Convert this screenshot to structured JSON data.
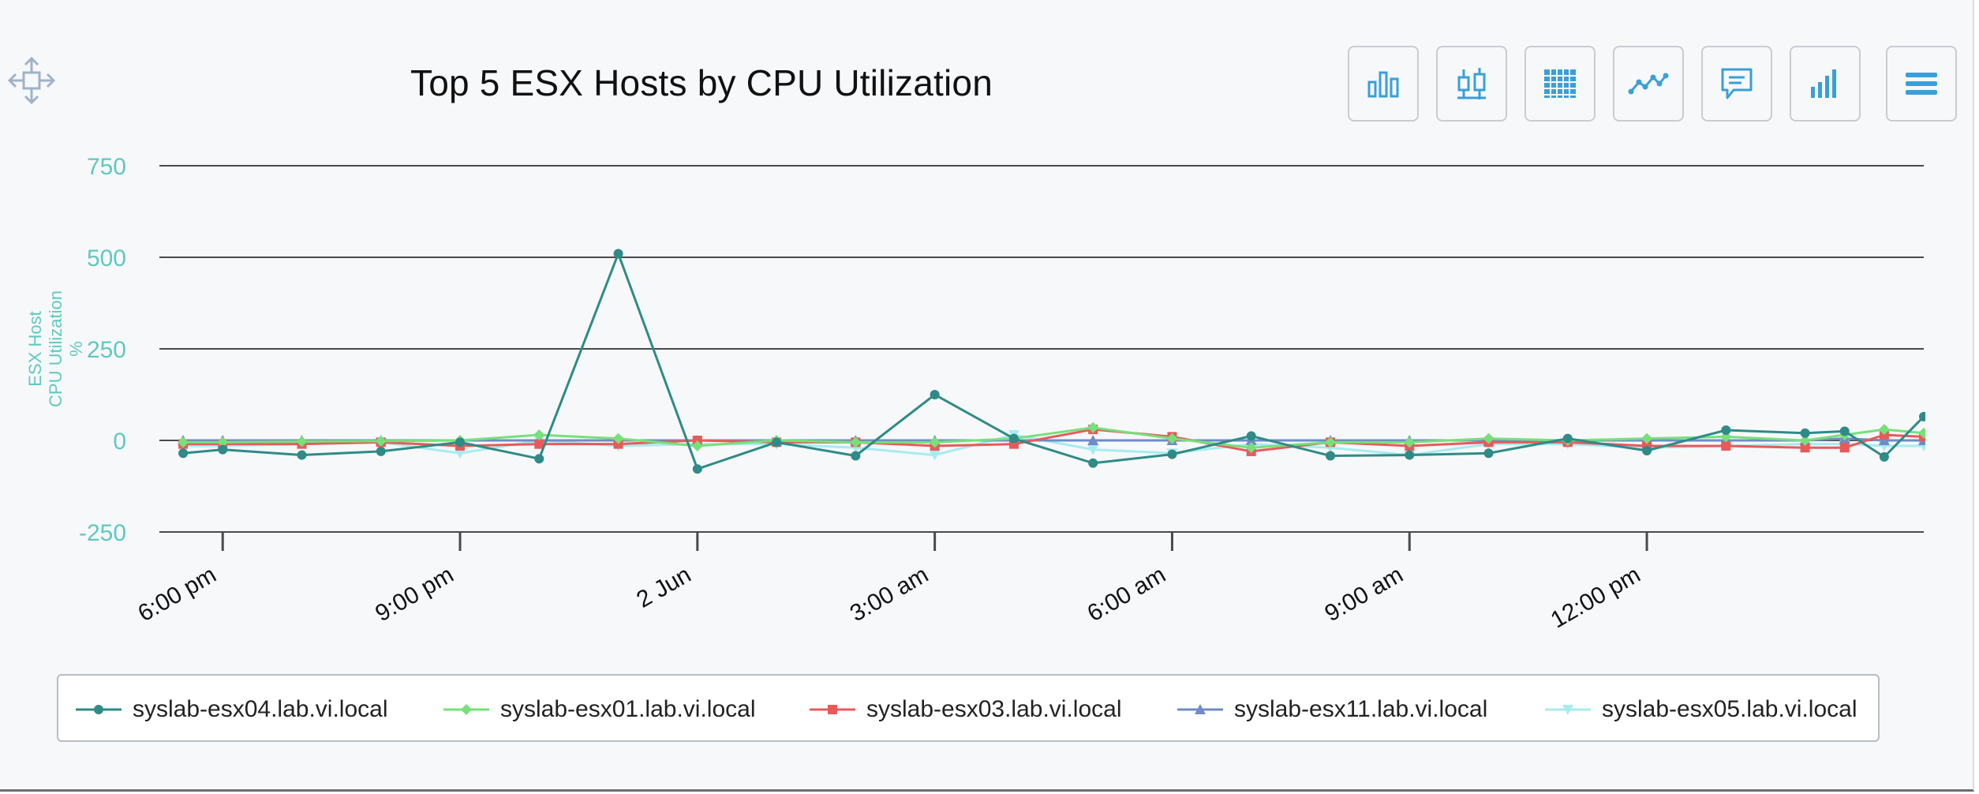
{
  "chart_data": {
    "type": "line",
    "title": "Top 5 ESX Hosts by CPU Utilization",
    "ylabel": [
      "ESX Host",
      "CPU Utilization",
      "%"
    ],
    "xlabel": "",
    "ylim": [
      -250,
      750
    ],
    "y_ticks": [
      750,
      500,
      250,
      0,
      -250
    ],
    "y_tick_labels": [
      "750",
      "500",
      "250",
      "0",
      "-250"
    ],
    "x_time_domain_hours": [
      -0.8,
      21.5
    ],
    "x_ticks": [
      {
        "hours": 0,
        "label": "6:00 pm"
      },
      {
        "hours": 3,
        "label": "9:00 pm"
      },
      {
        "hours": 6,
        "label": "2 Jun"
      },
      {
        "hours": 9,
        "label": "3:00 am"
      },
      {
        "hours": 12,
        "label": "6:00 am"
      },
      {
        "hours": 15,
        "label": "9:00 am"
      },
      {
        "hours": 18,
        "label": "12:00 pm"
      }
    ],
    "x_hours": [
      -0.5,
      0,
      1,
      2,
      3,
      4,
      5,
      6,
      7,
      8,
      9,
      10,
      11,
      12,
      13,
      14,
      15,
      16,
      17,
      18,
      19,
      20,
      20.5,
      21,
      21.5
    ],
    "grid": true,
    "legend_position": "bottom",
    "series": [
      {
        "name": "syslab-esx04.lab.vi.local",
        "color": "#2e8b87",
        "marker": "circle",
        "values": [
          -35,
          -25,
          -40,
          -30,
          -5,
          -50,
          510,
          -78,
          -5,
          -42,
          125,
          5,
          -62,
          -38,
          12,
          -42,
          -40,
          -35,
          5,
          -28,
          28,
          20,
          25,
          -45,
          65
        ]
      },
      {
        "name": "syslab-esx01.lab.vi.local",
        "color": "#77e07a",
        "marker": "diamond",
        "values": [
          -5,
          -5,
          -3,
          -2,
          0,
          15,
          5,
          -15,
          0,
          -5,
          -5,
          5,
          35,
          5,
          -20,
          -5,
          -5,
          5,
          0,
          5,
          10,
          0,
          15,
          30,
          20
        ]
      },
      {
        "name": "syslab-esx03.lab.vi.local",
        "color": "#e85a5a",
        "marker": "square",
        "values": [
          -10,
          -10,
          -10,
          -5,
          -15,
          -10,
          -10,
          0,
          -5,
          -5,
          -15,
          -10,
          30,
          10,
          -30,
          -5,
          -15,
          -5,
          -5,
          -15,
          -15,
          -20,
          -20,
          15,
          10
        ]
      },
      {
        "name": "syslab-esx11.lab.vi.local",
        "color": "#6f8cc6",
        "marker": "triangle",
        "values": [
          0,
          0,
          0,
          0,
          0,
          0,
          0,
          0,
          0,
          0,
          0,
          0,
          0,
          0,
          0,
          0,
          0,
          0,
          0,
          0,
          0,
          0,
          5,
          0,
          0
        ]
      },
      {
        "name": "syslab-esx05.lab.vi.local",
        "color": "#a6ecf0",
        "marker": "triangle-down",
        "values": [
          -15,
          -15,
          -10,
          -5,
          -35,
          0,
          -15,
          -10,
          -10,
          -20,
          -40,
          15,
          -25,
          -35,
          -10,
          -20,
          -40,
          -10,
          -10,
          -20,
          -15,
          -10,
          -10,
          -15,
          -15
        ]
      }
    ]
  },
  "toolbar": {
    "buttons": [
      {
        "icon": "bar-chart-icon"
      },
      {
        "icon": "candlestick-icon"
      },
      {
        "icon": "table-grid-icon"
      },
      {
        "icon": "line-chart-icon"
      },
      {
        "icon": "comment-icon"
      },
      {
        "icon": "signal-bars-icon"
      },
      {
        "icon": "hamburger-menu-icon"
      }
    ]
  },
  "colors": {
    "axis_text": "#5fc8c2",
    "grid": "#4a4a4a",
    "icon": "#3a9fd8"
  }
}
